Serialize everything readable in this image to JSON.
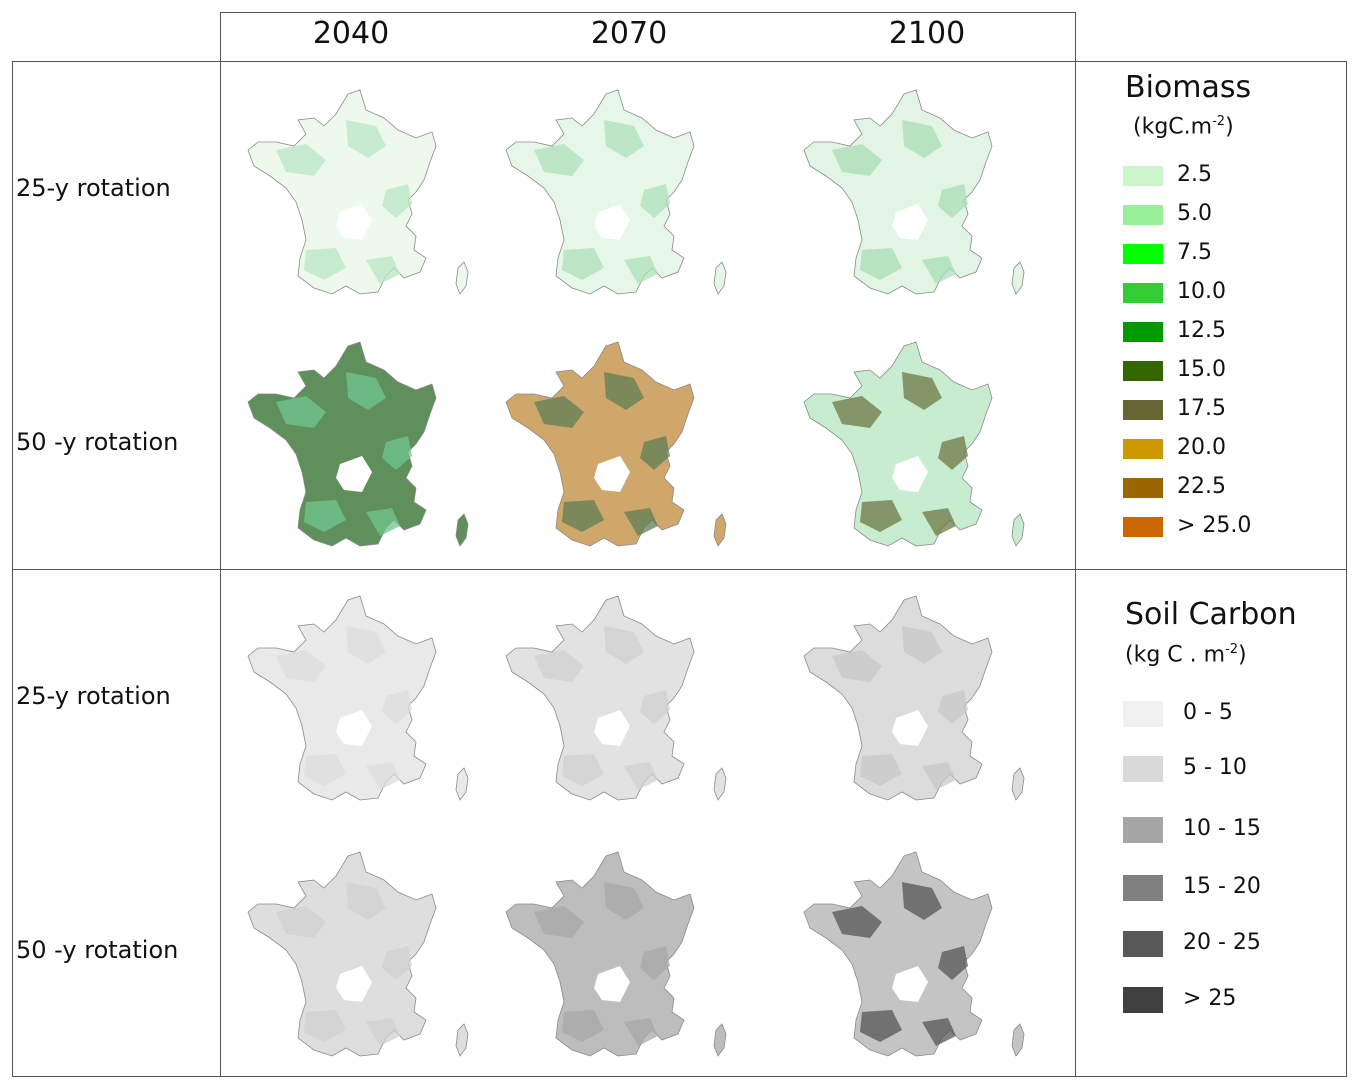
{
  "columns": [
    "2040",
    "2070",
    "2100"
  ],
  "rows": [
    "25-y rotation",
    "50 -y rotation"
  ],
  "sections": [
    {
      "id": "biomass",
      "legend": {
        "title": "Biomass",
        "unit_base": "kgC.m",
        "unit_exp": "-2",
        "unit_close": ")",
        "classes": [
          {
            "label": "2.5",
            "color": "#ccf5cc"
          },
          {
            "label": "5.0",
            "color": "#99f099"
          },
          {
            "label": "7.5",
            "color": "#00ff00"
          },
          {
            "label": "10.0",
            "color": "#33cc33"
          },
          {
            "label": "12.5",
            "color": "#009900"
          },
          {
            "label": "15.0",
            "color": "#336600"
          },
          {
            "label": "17.5",
            "color": "#666633"
          },
          {
            "label": "20.0",
            "color": "#cc9900"
          },
          {
            "label": "22.5",
            "color": "#996600"
          },
          {
            "label": "> 25.0",
            "color": "#cc6600"
          }
        ]
      },
      "maps": [
        {
          "row": "25-y rotation",
          "year": "2040",
          "fill": "#eef9ee",
          "patch": "#b8e6c4"
        },
        {
          "row": "25-y rotation",
          "year": "2070",
          "fill": "#e6f6e8",
          "patch": "#aee0bb"
        },
        {
          "row": "25-y rotation",
          "year": "2100",
          "fill": "#e2f4e4",
          "patch": "#a8ddb6"
        },
        {
          "row": "50 -y rotation",
          "year": "2040",
          "fill": "#5f8f5a",
          "patch": "#6fc690"
        },
        {
          "row": "50 -y rotation",
          "year": "2070",
          "fill": "#cfa76a",
          "patch": "#5f7f55"
        },
        {
          "row": "50 -y rotation",
          "year": "2100",
          "fill": "#c7ecd0",
          "patch": "#6d7a45"
        }
      ]
    },
    {
      "id": "soil",
      "legend": {
        "title": "Soil Carbon",
        "unit_base": "kg C . m",
        "unit_exp": "-2",
        "unit_close": ")",
        "classes": [
          {
            "label": "0 - 5",
            "color": "#f0f0f0"
          },
          {
            "label": "5 - 10",
            "color": "#d9d9d9"
          },
          {
            "label": "10 - 15",
            "color": "#a6a6a6"
          },
          {
            "label": "15 - 20",
            "color": "#808080"
          },
          {
            "label": "20 - 25",
            "color": "#595959"
          },
          {
            "label": "> 25",
            "color": "#404040"
          }
        ]
      },
      "maps": [
        {
          "row": "25-y rotation",
          "year": "2040",
          "fill": "#e9e9e9",
          "patch": "#dcdcdc"
        },
        {
          "row": "25-y rotation",
          "year": "2070",
          "fill": "#e2e2e2",
          "patch": "#d0d0d0"
        },
        {
          "row": "25-y rotation",
          "year": "2100",
          "fill": "#dcdcdc",
          "patch": "#c8c8c8"
        },
        {
          "row": "50 -y rotation",
          "year": "2040",
          "fill": "#dedede",
          "patch": "#d0d0d0"
        },
        {
          "row": "50 -y rotation",
          "year": "2070",
          "fill": "#bdbdbd",
          "patch": "#a8a8a8"
        },
        {
          "row": "50 -y rotation",
          "year": "2100",
          "fill": "#c4c4c4",
          "patch": "#555555"
        }
      ]
    }
  ]
}
